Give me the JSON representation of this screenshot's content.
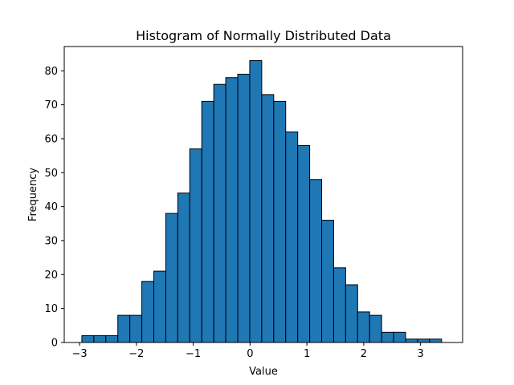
{
  "chart_data": {
    "type": "bar",
    "title": "Histogram of Normally Distributed Data",
    "xlabel": "Value",
    "ylabel": "Frequency",
    "xlim": [
      -3.27,
      3.74
    ],
    "ylim": [
      0,
      87.15
    ],
    "xticks": [
      -3,
      -2,
      -1,
      0,
      1,
      2,
      3
    ],
    "yticks": [
      0,
      10,
      20,
      30,
      40,
      50,
      60,
      70,
      80
    ],
    "grid": false,
    "bin_start": -2.96,
    "bin_width": 0.211,
    "values": [
      2,
      2,
      2,
      8,
      8,
      18,
      21,
      38,
      44,
      57,
      71,
      76,
      78,
      79,
      83,
      73,
      71,
      62,
      58,
      48,
      36,
      22,
      17,
      9,
      8,
      3,
      3,
      1,
      1,
      1
    ],
    "colors": {
      "bar_fill": "#1f77b4",
      "bar_edge": "#000000"
    }
  }
}
